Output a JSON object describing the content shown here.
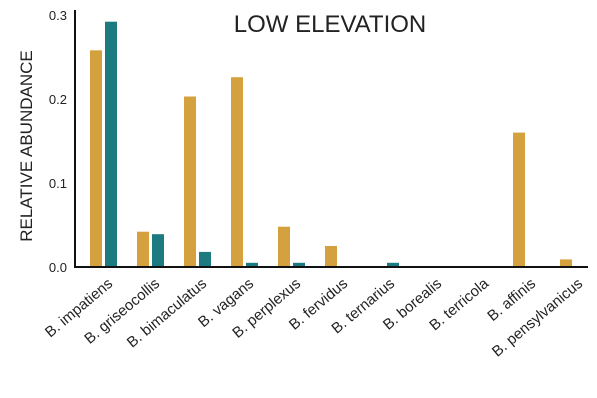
{
  "chart_data": {
    "type": "bar",
    "title": "LOW ELEVATION",
    "ylabel": "RELATIVE ABUNDANCE",
    "xlabel": "",
    "ylim": [
      0,
      0.3
    ],
    "yticks": [
      "0.0",
      "0.1",
      "0.2",
      "0.3"
    ],
    "categories": [
      "B. impatiens",
      "B. griseocollis",
      "B. bimaculatus",
      "B. vagans",
      "B. perplexus",
      "B. fervidus",
      "B. ternarius",
      "B. borealis",
      "B. terricola",
      "B. affinis",
      "B. pensylvanicus"
    ],
    "series": [
      {
        "color": "#D4A13E",
        "values": [
          0.258,
          0.042,
          0.203,
          0.226,
          0.048,
          0.025,
          0.0,
          0.0,
          0.0,
          0.16,
          0.009
        ]
      },
      {
        "color": "#1D7A80",
        "values": [
          0.292,
          0.039,
          0.018,
          0.005,
          0.005,
          0.0,
          0.005,
          0.0,
          0.0,
          0.0,
          0.0
        ]
      }
    ],
    "grid": false,
    "legend": "none"
  }
}
